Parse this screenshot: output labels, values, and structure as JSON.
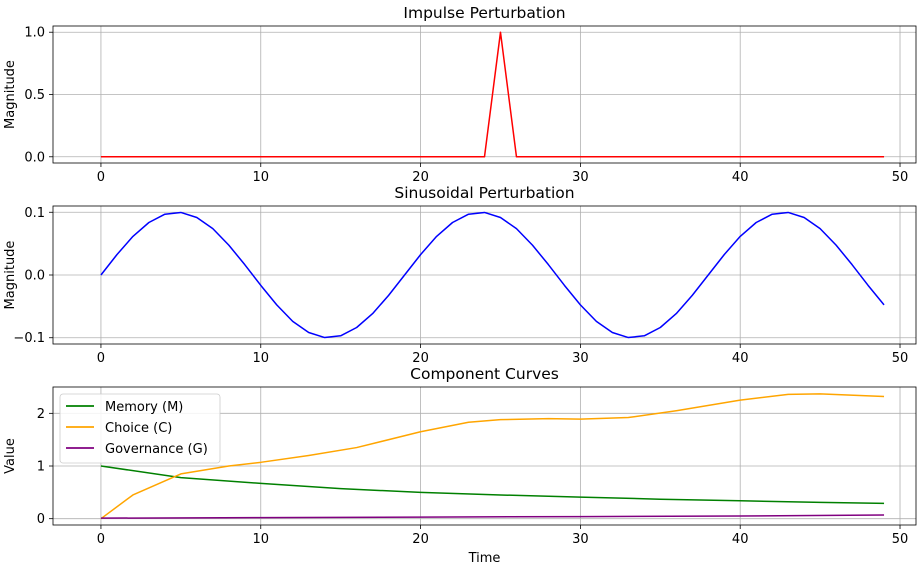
{
  "chart_data": [
    {
      "type": "line",
      "title": "Impulse Perturbation",
      "xlabel": "",
      "ylabel": "Magnitude",
      "xlim": [
        -3,
        51
      ],
      "ylim": [
        -0.05,
        1.05
      ],
      "grid": true,
      "xticks": [
        0,
        10,
        20,
        30,
        40,
        50
      ],
      "xtick_labels": [
        "0",
        "10",
        "20",
        "30",
        "40",
        "50"
      ],
      "yticks": [
        0.0,
        0.5,
        1.0
      ],
      "ytick_labels": [
        "0.0",
        "0.5",
        "1.0"
      ],
      "series": [
        {
          "color": "#ff0000",
          "x": [
            0,
            1,
            2,
            3,
            4,
            5,
            6,
            7,
            8,
            9,
            10,
            11,
            12,
            13,
            14,
            15,
            16,
            17,
            18,
            19,
            20,
            21,
            22,
            23,
            24,
            25,
            26,
            27,
            28,
            29,
            30,
            31,
            32,
            33,
            34,
            35,
            36,
            37,
            38,
            39,
            40,
            41,
            42,
            43,
            44,
            45,
            46,
            47,
            48,
            49
          ],
          "y": [
            0,
            0,
            0,
            0,
            0,
            0,
            0,
            0,
            0,
            0,
            0,
            0,
            0,
            0,
            0,
            0,
            0,
            0,
            0,
            0,
            0,
            0,
            0,
            0,
            0,
            1,
            0,
            0,
            0,
            0,
            0,
            0,
            0,
            0,
            0,
            0,
            0,
            0,
            0,
            0,
            0,
            0,
            0,
            0,
            0,
            0,
            0,
            0,
            0,
            0
          ]
        }
      ]
    },
    {
      "type": "line",
      "title": "Sinusoidal Perturbation",
      "xlabel": "",
      "ylabel": "Magnitude",
      "xlim": [
        -3,
        51
      ],
      "ylim": [
        -0.11,
        0.11
      ],
      "grid": true,
      "xticks": [
        0,
        10,
        20,
        30,
        40,
        50
      ],
      "xtick_labels": [
        "0",
        "10",
        "20",
        "30",
        "40",
        "50"
      ],
      "yticks": [
        -0.1,
        0.0,
        0.1
      ],
      "ytick_labels": [
        "−0.1",
        "0.0",
        "0.1"
      ],
      "series": [
        {
          "color": "#0000ff",
          "x": [
            0,
            1,
            2,
            3,
            4,
            5,
            6,
            7,
            8,
            9,
            10,
            11,
            12,
            13,
            14,
            15,
            16,
            17,
            18,
            19,
            20,
            21,
            22,
            23,
            24,
            25,
            26,
            27,
            28,
            29,
            30,
            31,
            32,
            33,
            34,
            35,
            36,
            37,
            38,
            39,
            40,
            41,
            42,
            43,
            44,
            45,
            46,
            47,
            48,
            49
          ],
          "y": [
            0.0,
            0.0325,
            0.0615,
            0.0837,
            0.0969,
            0.0997,
            0.0917,
            0.0739,
            0.0476,
            0.0165,
            -0.0165,
            -0.0476,
            -0.0739,
            -0.0917,
            -0.0997,
            -0.0969,
            -0.0837,
            -0.0615,
            -0.0325,
            0.0,
            0.0325,
            0.0615,
            0.0837,
            0.0969,
            0.0997,
            0.0917,
            0.0739,
            0.0476,
            0.0165,
            -0.0165,
            -0.0476,
            -0.0739,
            -0.0917,
            -0.0997,
            -0.0969,
            -0.0837,
            -0.0615,
            -0.0325,
            0.0,
            0.0325,
            0.0615,
            0.0837,
            0.0969,
            0.0997,
            0.0917,
            0.0739,
            0.0476,
            0.0165,
            -0.0165,
            -0.0476
          ]
        }
      ]
    },
    {
      "type": "line",
      "title": "Component Curves",
      "xlabel": "Time",
      "ylabel": "Value",
      "xlim": [
        -3,
        51
      ],
      "ylim": [
        -0.12,
        2.5
      ],
      "grid": true,
      "legend": "top-left",
      "xticks": [
        0,
        10,
        20,
        30,
        40,
        50
      ],
      "xtick_labels": [
        "0",
        "10",
        "20",
        "30",
        "40",
        "50"
      ],
      "yticks": [
        0,
        1,
        2
      ],
      "ytick_labels": [
        "0",
        "1",
        "2"
      ],
      "series": [
        {
          "name": "Memory (M)",
          "color": "#008000",
          "x": [
            0,
            5,
            10,
            15,
            20,
            25,
            30,
            35,
            40,
            45,
            49
          ],
          "y": [
            1.0,
            0.78,
            0.67,
            0.57,
            0.5,
            0.45,
            0.41,
            0.37,
            0.34,
            0.31,
            0.29
          ]
        },
        {
          "name": "Choice (C)",
          "color": "#ffa500",
          "x": [
            0,
            2,
            5,
            8,
            10,
            13,
            16,
            20,
            23,
            25,
            28,
            30,
            33,
            36,
            40,
            43,
            45,
            49
          ],
          "y": [
            0.0,
            0.45,
            0.85,
            1.0,
            1.07,
            1.2,
            1.35,
            1.65,
            1.83,
            1.88,
            1.9,
            1.89,
            1.92,
            2.05,
            2.25,
            2.36,
            2.37,
            2.32
          ]
        },
        {
          "name": "Governance (G)",
          "color": "#800080",
          "x": [
            0,
            10,
            20,
            30,
            40,
            49
          ],
          "y": [
            0.01,
            0.02,
            0.03,
            0.04,
            0.05,
            0.07
          ]
        }
      ]
    }
  ]
}
